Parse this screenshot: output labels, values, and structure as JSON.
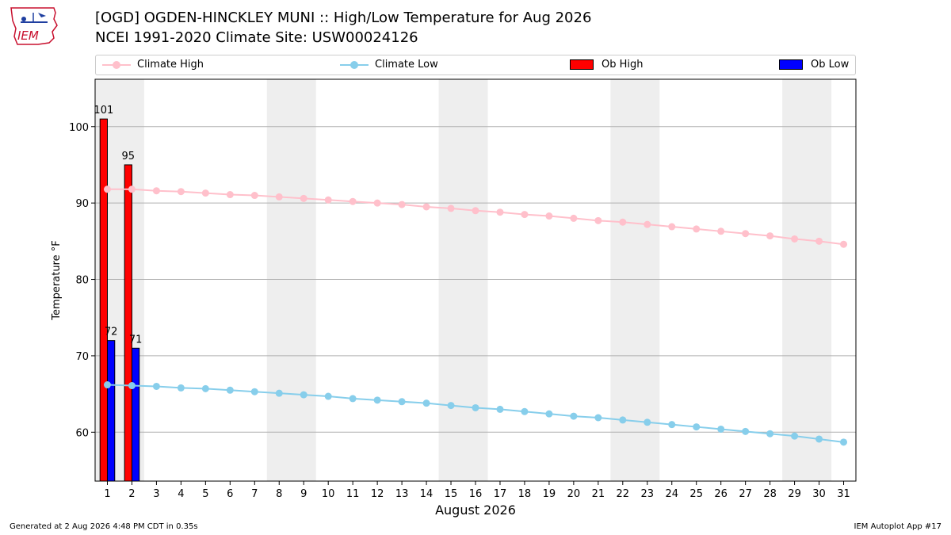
{
  "header": {
    "title_line1": "[OGD] OGDEN-HINCKLEY MUNI :: High/Low Temperature for Aug 2026",
    "title_line2": "NCEI 1991-2020 Climate Site: USW00024126",
    "logo_text": "IEM"
  },
  "footer": {
    "generated": "Generated at 2 Aug 2026 4:48 PM CDT in 0.35s",
    "app": "IEM Autoplot App #17"
  },
  "chart_data": {
    "type": "bar",
    "xlabel": "August 2026",
    "ylabel": "Temperature °F",
    "ylim": [
      53.6,
      106.2
    ],
    "yticks": [
      60,
      70,
      80,
      90,
      100
    ],
    "grid": "horizontal",
    "legend_position": "top",
    "days": [
      1,
      2,
      3,
      4,
      5,
      6,
      7,
      8,
      9,
      10,
      11,
      12,
      13,
      14,
      15,
      16,
      17,
      18,
      19,
      20,
      21,
      22,
      23,
      24,
      25,
      26,
      27,
      28,
      29,
      30,
      31
    ],
    "weekend_shading": [
      [
        1,
        2
      ],
      [
        8,
        9
      ],
      [
        15,
        16
      ],
      [
        22,
        23
      ],
      [
        29,
        30
      ]
    ],
    "series": [
      {
        "name": "Climate High",
        "kind": "line",
        "color": "#FFC0CB",
        "values": [
          91.8,
          91.8,
          91.6,
          91.5,
          91.3,
          91.1,
          91.0,
          90.8,
          90.6,
          90.4,
          90.2,
          90.0,
          89.8,
          89.5,
          89.3,
          89.0,
          88.8,
          88.5,
          88.3,
          88.0,
          87.7,
          87.5,
          87.2,
          86.9,
          86.6,
          86.3,
          86.0,
          85.7,
          85.3,
          85.0,
          84.6
        ]
      },
      {
        "name": "Climate Low",
        "kind": "line",
        "color": "#87CEEB",
        "values": [
          66.2,
          66.1,
          66.0,
          65.8,
          65.7,
          65.5,
          65.3,
          65.1,
          64.9,
          64.7,
          64.4,
          64.2,
          64.0,
          63.8,
          63.5,
          63.2,
          63.0,
          62.7,
          62.4,
          62.1,
          61.9,
          61.6,
          61.3,
          61.0,
          60.7,
          60.4,
          60.1,
          59.8,
          59.5,
          59.1,
          58.7
        ]
      },
      {
        "name": "Ob High",
        "kind": "bar",
        "color": "#FF0000",
        "values": [
          101,
          95
        ]
      },
      {
        "name": "Ob Low",
        "kind": "bar",
        "color": "#0000FF",
        "values": [
          72,
          71
        ]
      }
    ],
    "bar_labels": {
      "high": [
        "101",
        "95"
      ],
      "low": [
        "72",
        "71"
      ]
    }
  }
}
